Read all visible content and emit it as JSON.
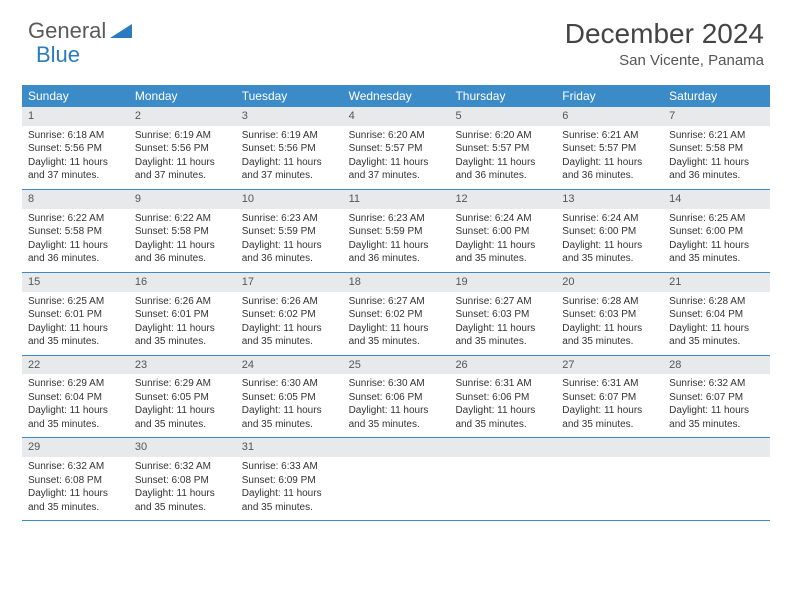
{
  "logo": {
    "text1": "General",
    "text2": "Blue"
  },
  "title": "December 2024",
  "location": "San Vicente, Panama",
  "header_bg": "#3b8bc8",
  "daynum_bg": "#e8e9ea",
  "weekdays": [
    "Sunday",
    "Monday",
    "Tuesday",
    "Wednesday",
    "Thursday",
    "Friday",
    "Saturday"
  ],
  "weeks": [
    [
      {
        "n": "1",
        "sr": "Sunrise: 6:18 AM",
        "ss": "Sunset: 5:56 PM",
        "d1": "Daylight: 11 hours",
        "d2": "and 37 minutes."
      },
      {
        "n": "2",
        "sr": "Sunrise: 6:19 AM",
        "ss": "Sunset: 5:56 PM",
        "d1": "Daylight: 11 hours",
        "d2": "and 37 minutes."
      },
      {
        "n": "3",
        "sr": "Sunrise: 6:19 AM",
        "ss": "Sunset: 5:56 PM",
        "d1": "Daylight: 11 hours",
        "d2": "and 37 minutes."
      },
      {
        "n": "4",
        "sr": "Sunrise: 6:20 AM",
        "ss": "Sunset: 5:57 PM",
        "d1": "Daylight: 11 hours",
        "d2": "and 37 minutes."
      },
      {
        "n": "5",
        "sr": "Sunrise: 6:20 AM",
        "ss": "Sunset: 5:57 PM",
        "d1": "Daylight: 11 hours",
        "d2": "and 36 minutes."
      },
      {
        "n": "6",
        "sr": "Sunrise: 6:21 AM",
        "ss": "Sunset: 5:57 PM",
        "d1": "Daylight: 11 hours",
        "d2": "and 36 minutes."
      },
      {
        "n": "7",
        "sr": "Sunrise: 6:21 AM",
        "ss": "Sunset: 5:58 PM",
        "d1": "Daylight: 11 hours",
        "d2": "and 36 minutes."
      }
    ],
    [
      {
        "n": "8",
        "sr": "Sunrise: 6:22 AM",
        "ss": "Sunset: 5:58 PM",
        "d1": "Daylight: 11 hours",
        "d2": "and 36 minutes."
      },
      {
        "n": "9",
        "sr": "Sunrise: 6:22 AM",
        "ss": "Sunset: 5:58 PM",
        "d1": "Daylight: 11 hours",
        "d2": "and 36 minutes."
      },
      {
        "n": "10",
        "sr": "Sunrise: 6:23 AM",
        "ss": "Sunset: 5:59 PM",
        "d1": "Daylight: 11 hours",
        "d2": "and 36 minutes."
      },
      {
        "n": "11",
        "sr": "Sunrise: 6:23 AM",
        "ss": "Sunset: 5:59 PM",
        "d1": "Daylight: 11 hours",
        "d2": "and 36 minutes."
      },
      {
        "n": "12",
        "sr": "Sunrise: 6:24 AM",
        "ss": "Sunset: 6:00 PM",
        "d1": "Daylight: 11 hours",
        "d2": "and 35 minutes."
      },
      {
        "n": "13",
        "sr": "Sunrise: 6:24 AM",
        "ss": "Sunset: 6:00 PM",
        "d1": "Daylight: 11 hours",
        "d2": "and 35 minutes."
      },
      {
        "n": "14",
        "sr": "Sunrise: 6:25 AM",
        "ss": "Sunset: 6:00 PM",
        "d1": "Daylight: 11 hours",
        "d2": "and 35 minutes."
      }
    ],
    [
      {
        "n": "15",
        "sr": "Sunrise: 6:25 AM",
        "ss": "Sunset: 6:01 PM",
        "d1": "Daylight: 11 hours",
        "d2": "and 35 minutes."
      },
      {
        "n": "16",
        "sr": "Sunrise: 6:26 AM",
        "ss": "Sunset: 6:01 PM",
        "d1": "Daylight: 11 hours",
        "d2": "and 35 minutes."
      },
      {
        "n": "17",
        "sr": "Sunrise: 6:26 AM",
        "ss": "Sunset: 6:02 PM",
        "d1": "Daylight: 11 hours",
        "d2": "and 35 minutes."
      },
      {
        "n": "18",
        "sr": "Sunrise: 6:27 AM",
        "ss": "Sunset: 6:02 PM",
        "d1": "Daylight: 11 hours",
        "d2": "and 35 minutes."
      },
      {
        "n": "19",
        "sr": "Sunrise: 6:27 AM",
        "ss": "Sunset: 6:03 PM",
        "d1": "Daylight: 11 hours",
        "d2": "and 35 minutes."
      },
      {
        "n": "20",
        "sr": "Sunrise: 6:28 AM",
        "ss": "Sunset: 6:03 PM",
        "d1": "Daylight: 11 hours",
        "d2": "and 35 minutes."
      },
      {
        "n": "21",
        "sr": "Sunrise: 6:28 AM",
        "ss": "Sunset: 6:04 PM",
        "d1": "Daylight: 11 hours",
        "d2": "and 35 minutes."
      }
    ],
    [
      {
        "n": "22",
        "sr": "Sunrise: 6:29 AM",
        "ss": "Sunset: 6:04 PM",
        "d1": "Daylight: 11 hours",
        "d2": "and 35 minutes."
      },
      {
        "n": "23",
        "sr": "Sunrise: 6:29 AM",
        "ss": "Sunset: 6:05 PM",
        "d1": "Daylight: 11 hours",
        "d2": "and 35 minutes."
      },
      {
        "n": "24",
        "sr": "Sunrise: 6:30 AM",
        "ss": "Sunset: 6:05 PM",
        "d1": "Daylight: 11 hours",
        "d2": "and 35 minutes."
      },
      {
        "n": "25",
        "sr": "Sunrise: 6:30 AM",
        "ss": "Sunset: 6:06 PM",
        "d1": "Daylight: 11 hours",
        "d2": "and 35 minutes."
      },
      {
        "n": "26",
        "sr": "Sunrise: 6:31 AM",
        "ss": "Sunset: 6:06 PM",
        "d1": "Daylight: 11 hours",
        "d2": "and 35 minutes."
      },
      {
        "n": "27",
        "sr": "Sunrise: 6:31 AM",
        "ss": "Sunset: 6:07 PM",
        "d1": "Daylight: 11 hours",
        "d2": "and 35 minutes."
      },
      {
        "n": "28",
        "sr": "Sunrise: 6:32 AM",
        "ss": "Sunset: 6:07 PM",
        "d1": "Daylight: 11 hours",
        "d2": "and 35 minutes."
      }
    ],
    [
      {
        "n": "29",
        "sr": "Sunrise: 6:32 AM",
        "ss": "Sunset: 6:08 PM",
        "d1": "Daylight: 11 hours",
        "d2": "and 35 minutes."
      },
      {
        "n": "30",
        "sr": "Sunrise: 6:32 AM",
        "ss": "Sunset: 6:08 PM",
        "d1": "Daylight: 11 hours",
        "d2": "and 35 minutes."
      },
      {
        "n": "31",
        "sr": "Sunrise: 6:33 AM",
        "ss": "Sunset: 6:09 PM",
        "d1": "Daylight: 11 hours",
        "d2": "and 35 minutes."
      },
      {
        "empty": true
      },
      {
        "empty": true
      },
      {
        "empty": true
      },
      {
        "empty": true
      }
    ]
  ]
}
